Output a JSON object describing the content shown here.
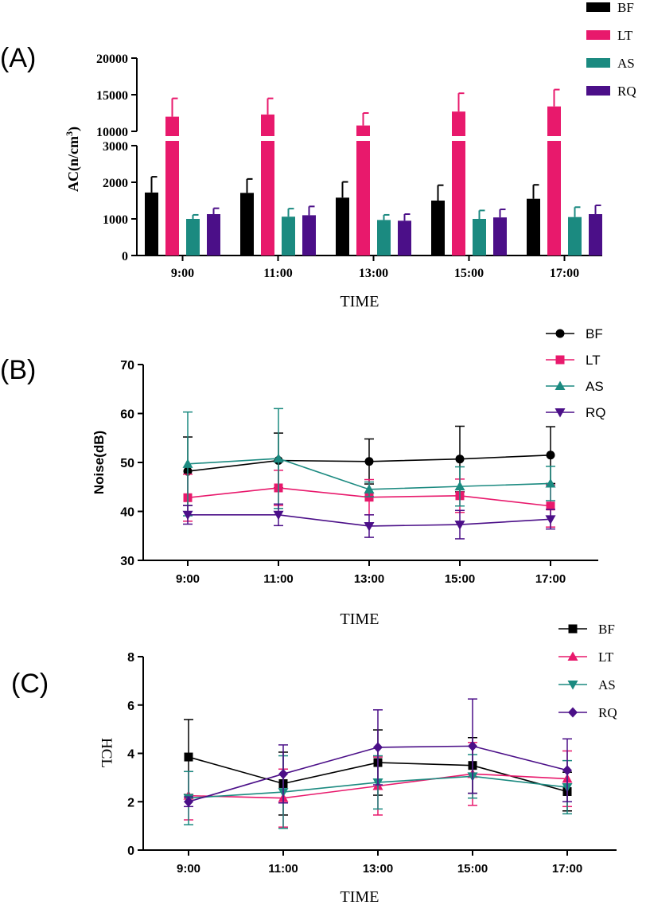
{
  "colors": {
    "BF": "#000000",
    "LT": "#e8196c",
    "AS": "#1b8a80",
    "RQ": "#4b0f88"
  },
  "chart_data": [
    {
      "panel": "(A)",
      "type": "bar",
      "categories": [
        "9:00",
        "11:00",
        "13:00",
        "15:00",
        "17:00"
      ],
      "xlabel": "TIME",
      "ylabel": "AC(n/cm",
      "ylabel_sup": "3",
      "ylabel_close": ")",
      "axis_break": {
        "lower": [
          0,
          3000
        ],
        "upper": [
          10000,
          20000
        ]
      },
      "lower_ticks": [
        "0",
        "1000",
        "2000",
        "3000"
      ],
      "upper_ticks": [
        "10000",
        "15000",
        "20000"
      ],
      "legend_position": "top-right",
      "series": [
        {
          "name": "BF",
          "values": [
            1720,
            1710,
            1580,
            1500,
            1550
          ],
          "errors": [
            430,
            380,
            430,
            420,
            380
          ]
        },
        {
          "name": "LT",
          "values": [
            12000,
            12300,
            10800,
            12700,
            13400
          ],
          "errors": [
            2500,
            2200,
            1700,
            2500,
            2300
          ]
        },
        {
          "name": "AS",
          "values": [
            1000,
            1060,
            970,
            1000,
            1050
          ],
          "errors": [
            110,
            220,
            140,
            230,
            270
          ]
        },
        {
          "name": "RQ",
          "values": [
            1130,
            1100,
            950,
            1040,
            1130
          ],
          "errors": [
            160,
            240,
            180,
            220,
            240
          ]
        }
      ]
    },
    {
      "panel": "(B)",
      "type": "line",
      "categories": [
        "9:00",
        "11:00",
        "13:00",
        "15:00",
        "17:00"
      ],
      "xlabel": "TIME",
      "ylabel": "Noise(dB)",
      "ylim": [
        30,
        70
      ],
      "ticks": [
        "30",
        "40",
        "50",
        "60",
        "70"
      ],
      "legend_position": "top-right",
      "series": [
        {
          "name": "BF",
          "marker": "circle",
          "values": [
            48.2,
            50.4,
            50.2,
            50.7,
            51.5
          ],
          "errors": [
            7.0,
            5.6,
            4.6,
            6.7,
            5.8
          ]
        },
        {
          "name": "LT",
          "marker": "square",
          "values": [
            42.8,
            44.8,
            42.9,
            43.2,
            41.1
          ],
          "errors": [
            4.8,
            3.6,
            3.6,
            3.4,
            4.3
          ]
        },
        {
          "name": "AS",
          "marker": "triangle-up",
          "values": [
            49.7,
            50.8,
            44.5,
            45.1,
            45.7
          ],
          "errors": [
            10.6,
            10.2,
            1.5,
            4.0,
            3.5
          ]
        },
        {
          "name": "RQ",
          "marker": "triangle-down",
          "values": [
            39.3,
            39.3,
            37.0,
            37.3,
            38.4
          ],
          "errors": [
            1.9,
            2.2,
            2.3,
            2.9,
            2.0
          ]
        }
      ]
    },
    {
      "panel": "(C)",
      "type": "line",
      "categories": [
        "9:00",
        "11:00",
        "13:00",
        "15:00",
        "17:00"
      ],
      "xlabel": "TIME",
      "ylabel": "HCL",
      "ylim": [
        0,
        8
      ],
      "ticks": [
        "0",
        "2",
        "4",
        "6",
        "8"
      ],
      "legend_position": "top-right",
      "series": [
        {
          "name": "BF",
          "marker": "square",
          "values": [
            3.85,
            2.75,
            3.62,
            3.5,
            2.42
          ],
          "errors": [
            1.55,
            1.3,
            1.35,
            1.15,
            0.8
          ]
        },
        {
          "name": "LT",
          "marker": "triangle-up",
          "values": [
            2.25,
            2.15,
            2.65,
            3.15,
            2.95
          ],
          "errors": [
            1.0,
            1.2,
            1.2,
            1.3,
            1.15
          ]
        },
        {
          "name": "AS",
          "marker": "triangle-down",
          "values": [
            2.15,
            2.4,
            2.8,
            3.05,
            2.6
          ],
          "errors": [
            1.1,
            1.5,
            1.1,
            0.9,
            1.1
          ]
        },
        {
          "name": "RQ",
          "marker": "diamond",
          "values": [
            2.0,
            3.15,
            4.25,
            4.3,
            3.3
          ],
          "errors": [
            0.2,
            1.2,
            1.55,
            1.95,
            1.3
          ]
        }
      ]
    }
  ]
}
